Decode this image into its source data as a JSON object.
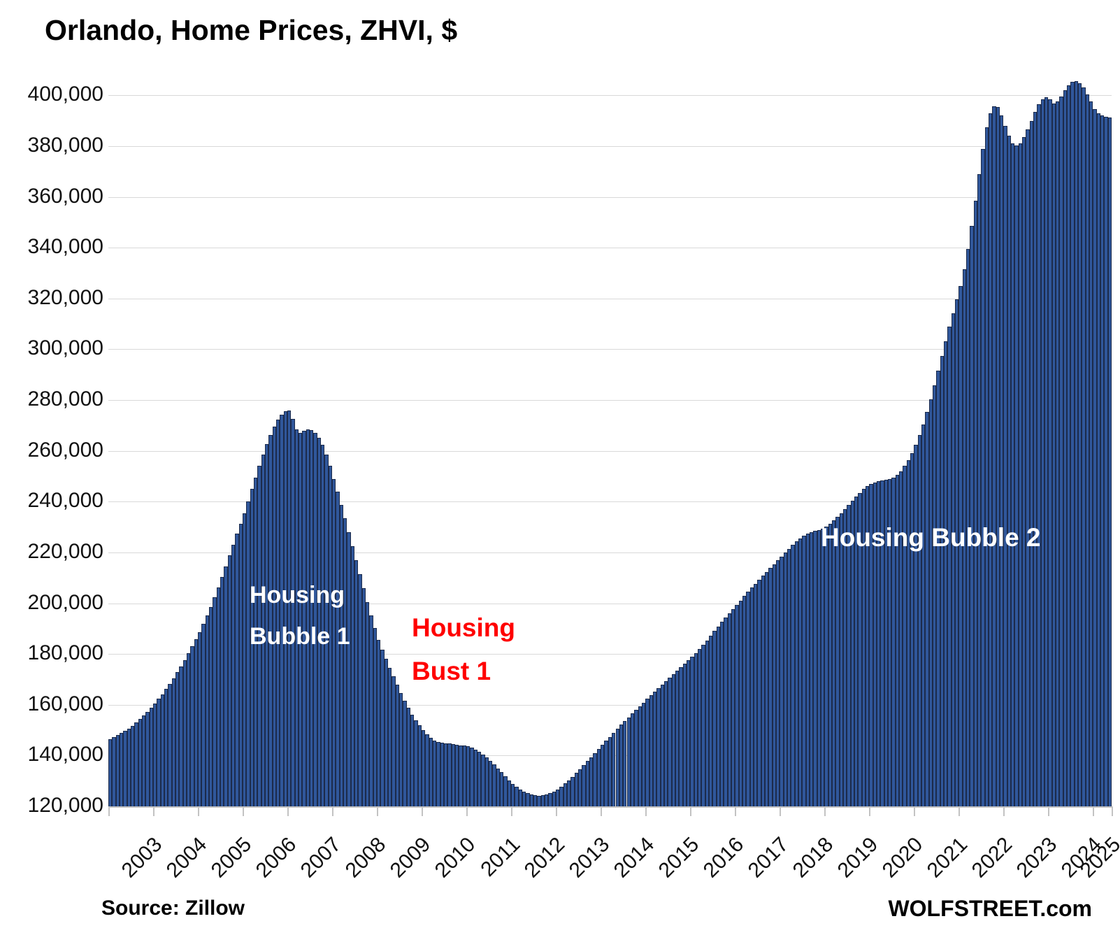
{
  "title": "Orlando, Home Prices, ZHVI, $",
  "source_note": "Source: Zillow",
  "brand": "WOLFSTREET.com",
  "annotations": {
    "bubble1": "Housing\nBubble 1",
    "bust1": "Housing\nBust 1",
    "bubble2": "Housing Bubble 2"
  },
  "colors": {
    "bar_fill": "#30579b",
    "bar_border": "#1c2b4b",
    "gridline": "#d9d9d9",
    "axis": "#c3c3c3",
    "bubble_label": "#ffffff",
    "bust_label": "#ff0000",
    "text": "#000000"
  },
  "chart_data": {
    "type": "bar",
    "title": "Orlando, Home Prices, ZHVI, $",
    "xlabel": "",
    "ylabel": "",
    "grid": "horizontal",
    "legend": "none",
    "ylim": [
      120000,
      410000
    ],
    "ytick_step": 20000,
    "ytick_labels": [
      "120,000",
      "140,000",
      "160,000",
      "180,000",
      "200,000",
      "220,000",
      "240,000",
      "260,000",
      "280,000",
      "300,000",
      "320,000",
      "340,000",
      "360,000",
      "380,000",
      "400,000"
    ],
    "x_years": [
      2003,
      2004,
      2005,
      2006,
      2007,
      2008,
      2009,
      2010,
      2011,
      2012,
      2013,
      2014,
      2015,
      2016,
      2017,
      2018,
      2019,
      2020,
      2021,
      2022,
      2023,
      2024,
      2025
    ],
    "x_start_month": "2003-01",
    "x_end_month": "2025-05",
    "monthly_values": [
      146500,
      147200,
      148000,
      148800,
      149700,
      150700,
      151800,
      153000,
      154300,
      155700,
      157200,
      158800,
      160500,
      162300,
      164200,
      166200,
      168300,
      170500,
      172800,
      175200,
      177700,
      180300,
      183000,
      185800,
      188700,
      191800,
      195100,
      198600,
      202300,
      206200,
      210300,
      214500,
      218800,
      223100,
      227300,
      231400,
      235400,
      240200,
      244900,
      249500,
      254000,
      258400,
      262600,
      266300,
      269500,
      272200,
      274300,
      275700,
      275800,
      272500,
      268500,
      267000,
      267800,
      268500,
      268300,
      267200,
      265200,
      262300,
      258500,
      254000,
      249000,
      244000,
      238800,
      233400,
      227900,
      222400,
      216900,
      211400,
      205900,
      200500,
      195300,
      190300,
      185600,
      181600,
      178000,
      174500,
      171100,
      167800,
      164600,
      161600,
      158800,
      156200,
      153900,
      151900,
      150100,
      148400,
      147000,
      146000,
      145400,
      145100,
      144900,
      144700,
      144500,
      144300,
      144100,
      143900,
      143600,
      143100,
      142400,
      141500,
      140400,
      139200,
      137900,
      136500,
      135000,
      133400,
      131800,
      130300,
      128900,
      127700,
      126700,
      125800,
      125100,
      124600,
      124300,
      124200,
      124300,
      124600,
      125100,
      125800,
      126700,
      127800,
      129000,
      130300,
      131700,
      133200,
      134700,
      136200,
      137800,
      139400,
      141000,
      142600,
      144200,
      145800,
      147400,
      149000,
      150600,
      152100,
      153600,
      155100,
      156600,
      158100,
      159500,
      160900,
      162300,
      163700,
      165100,
      166500,
      167900,
      169300,
      170700,
      172100,
      173500,
      174900,
      176200,
      177500,
      178900,
      180400,
      182000,
      183700,
      185400,
      187200,
      189000,
      190800,
      192600,
      194300,
      196000,
      197700,
      199400,
      201100,
      202800,
      204500,
      206100,
      207700,
      209300,
      210900,
      212400,
      213900,
      215400,
      216900,
      218400,
      219900,
      221400,
      222900,
      224300,
      225600,
      226700,
      227500,
      228100,
      228500,
      228900,
      229400,
      230200,
      231300,
      232600,
      234000,
      235500,
      237100,
      238700,
      240300,
      241900,
      243500,
      245000,
      246200,
      247000,
      247600,
      248100,
      248400,
      248600,
      248900,
      249500,
      250500,
      252000,
      254000,
      256400,
      259200,
      262500,
      266300,
      270500,
      275200,
      280300,
      285800,
      291500,
      297300,
      303100,
      308800,
      314300,
      319600,
      325000,
      331500,
      339500,
      348500,
      358500,
      369000,
      379000,
      387500,
      393000,
      395800,
      395300,
      392000,
      388000,
      384000,
      381000,
      380200,
      381200,
      383500,
      386500,
      390000,
      393500,
      396500,
      398500,
      399300,
      398300,
      396900,
      397600,
      399600,
      401900,
      404000,
      405300,
      405500,
      404700,
      403000,
      400500,
      397500,
      394700,
      393000,
      392000,
      391500,
      391200
    ]
  }
}
